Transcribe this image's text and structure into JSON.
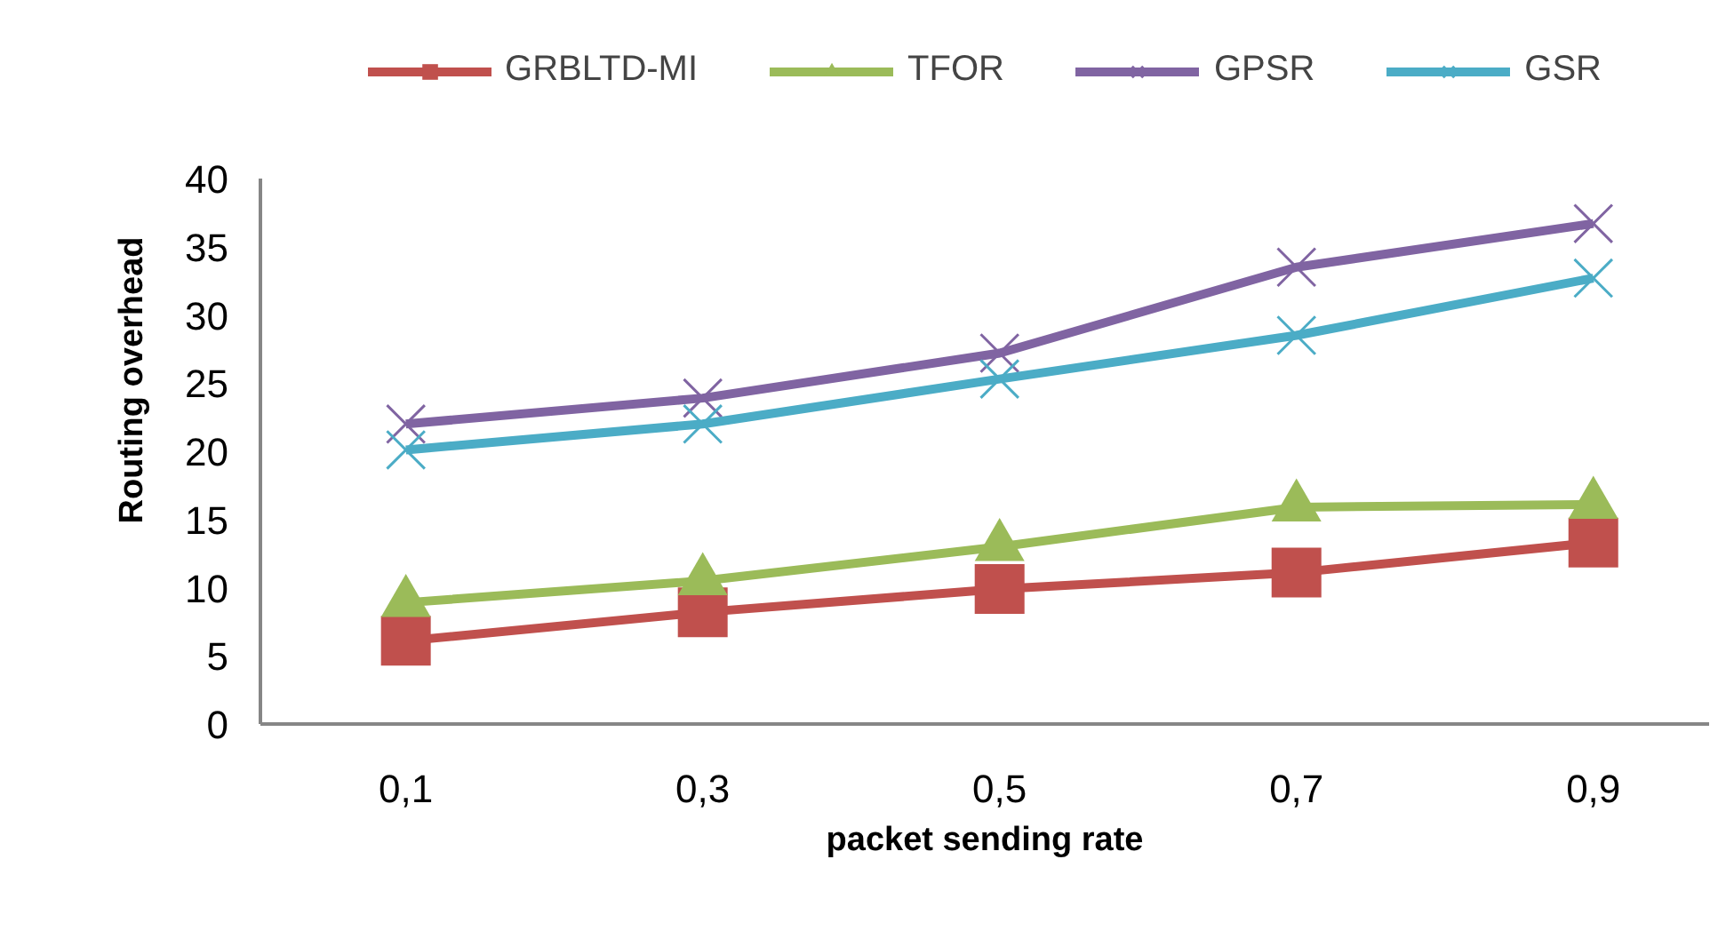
{
  "chart_data": {
    "type": "line",
    "xlabel": "packet sending rate",
    "ylabel": "Routing overhead",
    "categories": [
      "0,1",
      "0,3",
      "0,5",
      "0,7",
      "0,9"
    ],
    "ylim": [
      0,
      40
    ],
    "yticks": [
      0,
      5,
      10,
      15,
      20,
      25,
      30,
      35,
      40
    ],
    "grid": false,
    "legend": "top",
    "line_style": "solid",
    "series": [
      {
        "name": "GRBLTD-MI",
        "color": "#c0504d",
        "marker": "square",
        "values": [
          6.1,
          8.2,
          9.9,
          11.1,
          13.3
        ]
      },
      {
        "name": "TFOR",
        "color": "#9bbb59",
        "marker": "triangle",
        "values": [
          8.9,
          10.5,
          13.0,
          15.9,
          16.1
        ]
      },
      {
        "name": "GPSR",
        "color": "#8064a2",
        "marker": "cross",
        "values": [
          22.0,
          23.9,
          27.2,
          33.5,
          36.7
        ]
      },
      {
        "name": "GSR",
        "color": "#4bacc6",
        "marker": "cross",
        "values": [
          20.1,
          22.0,
          25.3,
          28.5,
          32.7
        ]
      }
    ]
  }
}
